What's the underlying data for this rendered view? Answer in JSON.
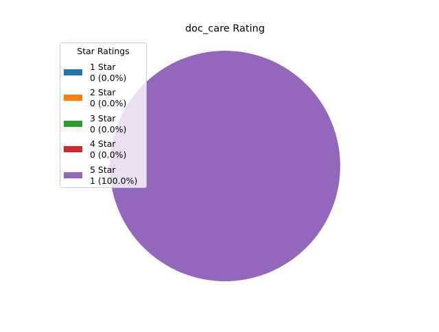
{
  "chart_data": {
    "type": "pie",
    "title": "doc_care Rating",
    "legend_title": "Star Ratings",
    "legend_position": "upper-left",
    "categories": [
      "1 Star",
      "2 Star",
      "3 Star",
      "4 Star",
      "5 Star"
    ],
    "values": [
      0,
      0,
      0,
      0,
      1
    ],
    "value_labels": [
      "0 (0.0%)",
      "0 (0.0%)",
      "0 (0.0%)",
      "0 (0.0%)",
      "1 (100.0%)"
    ],
    "colors": [
      "#1f77b4",
      "#ff7f0e",
      "#2ca02c",
      "#d62728",
      "#9467bd"
    ]
  }
}
